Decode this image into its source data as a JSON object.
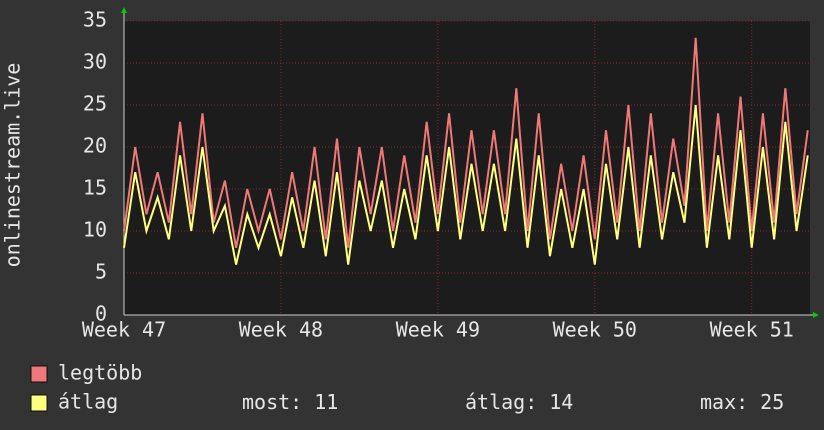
{
  "chart_data": {
    "type": "line",
    "y_label": "onlinestream.live",
    "x": [
      0,
      0.5,
      1,
      1.5,
      2,
      2.5,
      3,
      3.5,
      4,
      4.5,
      5,
      5.5,
      6,
      6.5,
      7,
      7.5,
      8,
      8.5,
      9,
      9.5,
      10,
      10.5,
      11,
      11.5,
      12,
      12.5,
      13,
      13.5,
      14,
      14.5,
      15,
      15.5,
      16,
      16.5,
      17,
      17.5,
      18,
      18.5,
      19,
      19.5,
      20,
      20.5,
      21,
      21.5,
      22,
      22.5,
      23,
      23.5,
      24,
      24.5,
      25,
      25.5,
      26,
      26.5,
      27,
      27.5,
      28,
      28.5,
      29,
      29.5,
      30,
      30.5
    ],
    "series": [
      {
        "name": "legtöbb",
        "color": "#f07878",
        "values": [
          10,
          20,
          12,
          17,
          11,
          23,
          12,
          24,
          11,
          16,
          8,
          15,
          10,
          15,
          9,
          17,
          10,
          20,
          9,
          21,
          8,
          20,
          12,
          20,
          10,
          19,
          11,
          23,
          12,
          24,
          11,
          22,
          12,
          22,
          12,
          27,
          10,
          24,
          9,
          18,
          10,
          19,
          9,
          22,
          11,
          25,
          10,
          24,
          11,
          21,
          13,
          33,
          10,
          24,
          11,
          26,
          10,
          24,
          11,
          27,
          12,
          22
        ]
      },
      {
        "name": "átlag",
        "color": "#ffff80",
        "values": [
          8,
          17,
          10,
          14,
          9,
          19,
          10,
          20,
          10,
          13,
          6,
          12,
          8,
          12,
          7,
          14,
          8,
          16,
          7,
          17,
          6,
          16,
          10,
          16,
          8,
          15,
          9,
          19,
          10,
          20,
          9,
          18,
          10,
          18,
          10,
          21,
          8,
          19,
          7,
          15,
          8,
          15,
          6,
          18,
          9,
          20,
          8,
          19,
          9,
          17,
          11,
          25,
          8,
          19,
          9,
          22,
          8,
          20,
          9,
          23,
          10,
          19
        ]
      }
    ],
    "xlim": [
      0,
      30.6
    ],
    "xticks": [
      {
        "value": 0,
        "label": "Week 47"
      },
      {
        "value": 7,
        "label": "Week 48"
      },
      {
        "value": 14,
        "label": "Week 49"
      },
      {
        "value": 21,
        "label": "Week 50"
      },
      {
        "value": 28,
        "label": "Week 51"
      }
    ],
    "ylim": [
      0,
      35
    ],
    "yticks": [
      0,
      5,
      10,
      15,
      20,
      25,
      30,
      35
    ],
    "grid": true,
    "stats": [
      {
        "label": "most:",
        "value": 11
      },
      {
        "label": "átlag:",
        "value": 14
      },
      {
        "label": "max:",
        "value": 25
      }
    ]
  }
}
